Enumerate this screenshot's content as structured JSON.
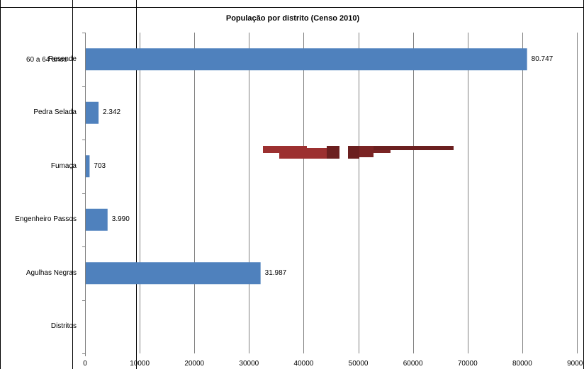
{
  "chart_data": {
    "type": "bar",
    "orientation": "horizontal",
    "title": "População por distrito (Censo 2010)",
    "categories": [
      "Resende",
      "Pedra Selada",
      "Fumaça",
      "Engenheiro Passos",
      "Agulhas Negras",
      "Distritos"
    ],
    "values": [
      80747,
      2342,
      703,
      3990,
      31987,
      null
    ],
    "data_labels": [
      "80.747",
      "2.342",
      "703",
      "3.990",
      "31.987",
      ""
    ],
    "xlim": [
      0,
      90000
    ],
    "x_ticks": [
      0,
      10000,
      20000,
      30000,
      40000,
      50000,
      60000,
      70000,
      80000,
      90000
    ],
    "x_tick_labels": [
      "0",
      "10000",
      "20000",
      "30000",
      "40000",
      "50000",
      "60000",
      "70000",
      "80000",
      "90000"
    ],
    "overlay_text": "60 a 64 anos",
    "grid": true,
    "legend": "none",
    "bar_color": "#4f81bd",
    "grid_color": "#808080"
  }
}
